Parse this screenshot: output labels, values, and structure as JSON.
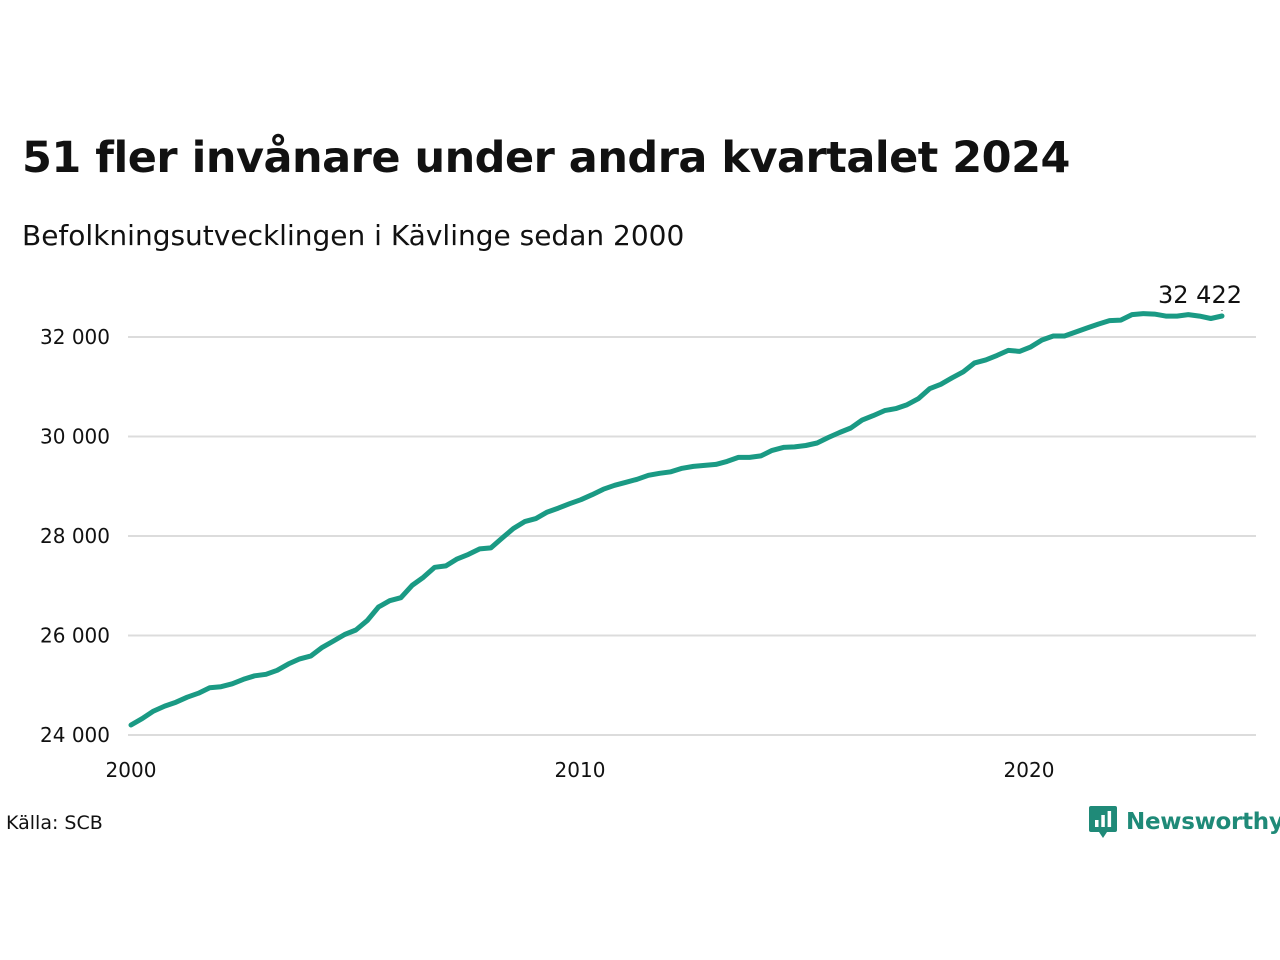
{
  "title": "51 fler invånare under andra kvartalet 2024",
  "subtitle": "Befolkningsutvecklingen i Kävlinge sedan 2000",
  "source": "Källa: SCB",
  "brand": {
    "name": "Newsworthy",
    "icon": "newsworthy-logo-icon",
    "color": "#1f8a78"
  },
  "colors": {
    "line": "#1a9a84",
    "grid": "#dcdcdc",
    "text": "#111111"
  },
  "chart_data": {
    "type": "line",
    "xlabel": "",
    "ylabel": "",
    "xlim": [
      2000,
      2025
    ],
    "ylim": [
      24000,
      33000
    ],
    "x_ticks": [
      2000,
      2010,
      2020
    ],
    "y_ticks": [
      24000,
      26000,
      28000,
      30000,
      32000
    ],
    "y_tick_labels": [
      "24 000",
      "26 000",
      "28 000",
      "30 000",
      "32 000"
    ],
    "x_tick_labels": [
      "2000",
      "2010",
      "2020"
    ],
    "grid": "horizontal",
    "end_label": "32 422",
    "series": [
      {
        "x": [
          2000.25,
          2000.5,
          2000.75,
          2001.0,
          2001.25,
          2001.5,
          2001.75,
          2002.0,
          2002.25,
          2002.5,
          2002.75,
          2003.0,
          2003.25,
          2003.5,
          2003.75,
          2004.0,
          2004.25,
          2004.5,
          2004.75,
          2005.0,
          2005.25,
          2005.5,
          2005.75,
          2006.0,
          2006.25,
          2006.5,
          2006.75,
          2007.0,
          2007.25,
          2007.5,
          2007.75,
          2008.0,
          2008.25,
          2008.5,
          2008.75,
          2009.0,
          2009.25,
          2009.5,
          2009.75,
          2010.0,
          2010.25,
          2010.5,
          2010.75,
          2011.0,
          2011.25,
          2011.5,
          2011.75,
          2012.0,
          2012.25,
          2012.5,
          2012.75,
          2013.0,
          2013.25,
          2013.5,
          2013.75,
          2014.0,
          2014.25,
          2014.5,
          2014.75,
          2015.0,
          2015.25,
          2015.5,
          2015.75,
          2016.0,
          2016.25,
          2016.5,
          2016.75,
          2017.0,
          2017.25,
          2017.5,
          2017.75,
          2018.0,
          2018.25,
          2018.5,
          2018.75,
          2019.0,
          2019.25,
          2019.5,
          2019.75,
          2020.0,
          2020.25,
          2020.5,
          2020.75,
          2021.0,
          2021.25,
          2021.5,
          2021.75,
          2022.0,
          2022.25,
          2022.5,
          2022.75,
          2023.0,
          2023.25,
          2023.5,
          2023.75,
          2024.0,
          2024.25,
          2024.5
        ],
        "values": [
          24200,
          24330,
          24480,
          24580,
          24660,
          24760,
          24840,
          24950,
          24970,
          25030,
          25120,
          25190,
          25220,
          25300,
          25430,
          25530,
          25590,
          25760,
          25890,
          26020,
          26110,
          26300,
          26570,
          26700,
          26760,
          27010,
          27170,
          27370,
          27400,
          27540,
          27630,
          27740,
          27760,
          27960,
          28150,
          28290,
          28350,
          28480,
          28560,
          28650,
          28730,
          28830,
          28940,
          29020,
          29080,
          29140,
          29220,
          29260,
          29290,
          29360,
          29400,
          29420,
          29440,
          29500,
          29580,
          29580,
          29610,
          29720,
          29780,
          29790,
          29820,
          29870,
          29980,
          30080,
          30170,
          30330,
          30420,
          30520,
          30560,
          30640,
          30760,
          30960,
          31050,
          31180,
          31300,
          31480,
          31540,
          31630,
          31730,
          31710,
          31800,
          31940,
          32020,
          32020,
          32100,
          32180,
          32260,
          32330,
          32340,
          32450,
          32470,
          32460,
          32420,
          32420,
          32450,
          32420,
          32371,
          32422
        ]
      }
    ]
  }
}
